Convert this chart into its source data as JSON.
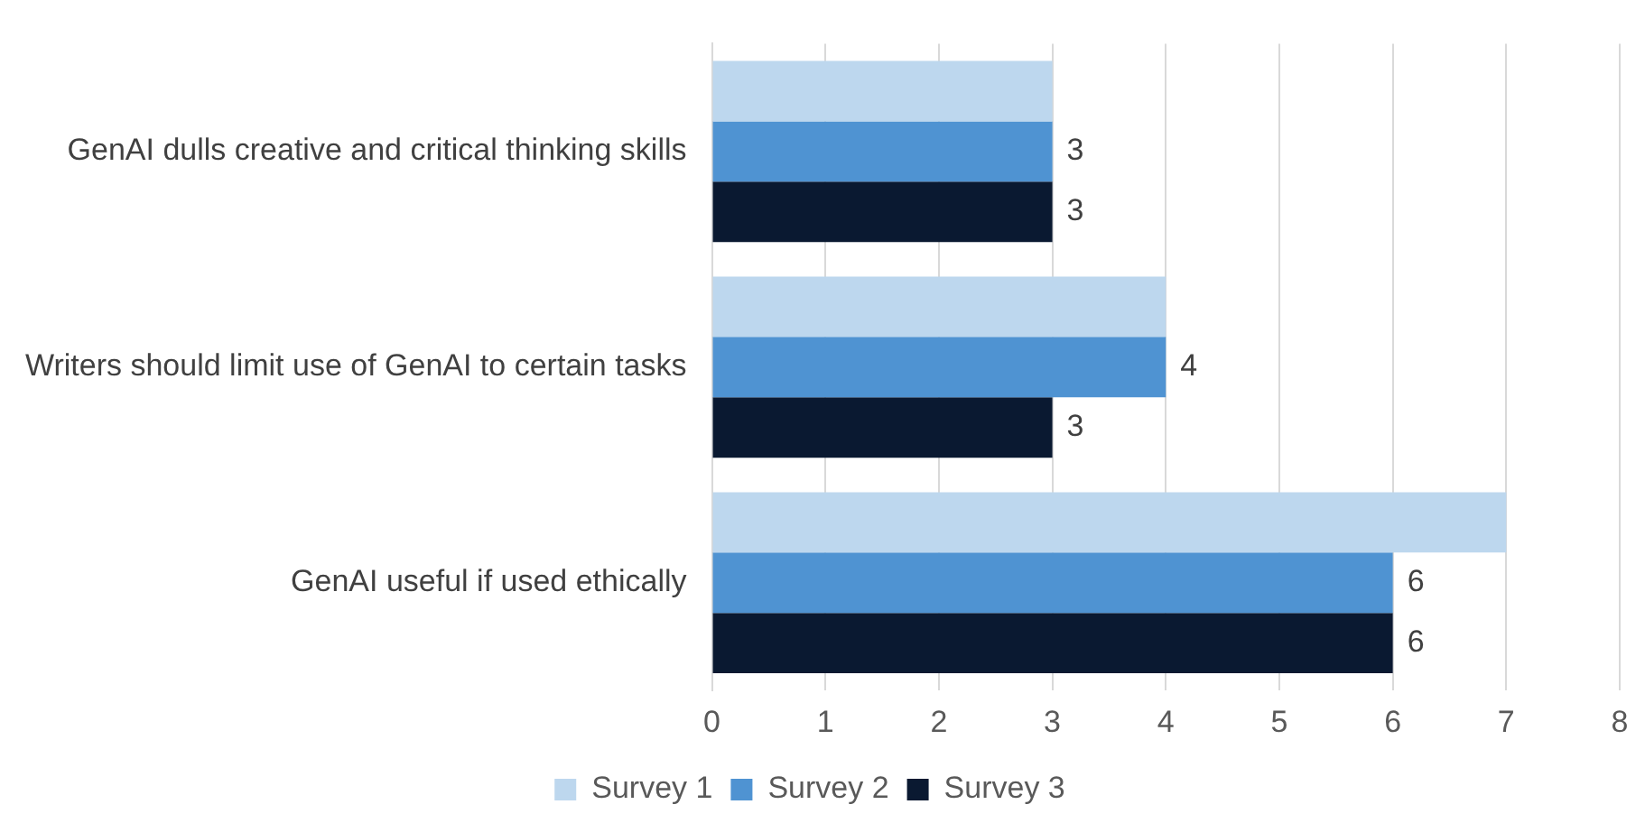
{
  "chart_data": {
    "type": "bar",
    "orientation": "horizontal",
    "categories": [
      "GenAI dulls creative and critical thinking skills",
      "Writers should limit use of GenAI to certain tasks",
      "GenAI useful if used ethically"
    ],
    "series": [
      {
        "name": "Survey 1",
        "color": "#bdd7ee",
        "values": [
          3,
          4,
          7
        ],
        "value_labels": [
          null,
          null,
          null
        ]
      },
      {
        "name": "Survey 2",
        "color": "#4f93d2",
        "values": [
          3,
          4,
          6
        ],
        "value_labels": [
          "3",
          "4",
          "6"
        ]
      },
      {
        "name": "Survey 3",
        "color": "#0a1931",
        "values": [
          3,
          3,
          6
        ],
        "value_labels": [
          "3",
          "3",
          "6"
        ]
      }
    ],
    "xlim": [
      0,
      8
    ],
    "xticks": [
      0,
      1,
      2,
      3,
      4,
      5,
      6,
      7,
      8
    ],
    "grid": "x",
    "legend": "bottom"
  }
}
